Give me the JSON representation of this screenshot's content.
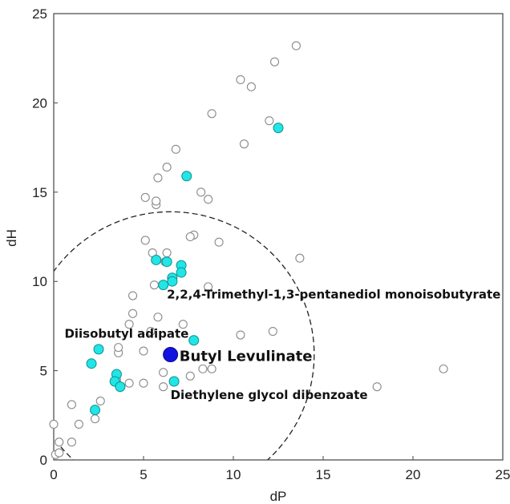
{
  "chart_data": {
    "type": "scatter",
    "title": "",
    "xlabel": "dP",
    "ylabel": "dH",
    "xlim": [
      0,
      25
    ],
    "ylim": [
      0,
      25
    ],
    "xticks": [
      0,
      5,
      10,
      15,
      20,
      25
    ],
    "yticks": [
      0,
      5,
      10,
      15,
      20,
      25
    ],
    "grid": false,
    "colors": {
      "grey_marker_edge": "#8a8a8a",
      "cyan_marker_fill": "#22e5e5",
      "cyan_marker_edge": "#0b8f8f",
      "target_marker_fill": "#1313e0",
      "circle_stroke": "#222222"
    },
    "series": [
      {
        "marker": "hollow-grey-circle",
        "points": [
          [
            0,
            2.0
          ],
          [
            0.3,
            1.0
          ],
          [
            1.0,
            1.0
          ],
          [
            0.1,
            0.3
          ],
          [
            0.3,
            0.4
          ],
          [
            1.0,
            3.1
          ],
          [
            1.4,
            2.0
          ],
          [
            2.3,
            2.3
          ],
          [
            2.6,
            3.3
          ],
          [
            3.6,
            6.0
          ],
          [
            3.6,
            6.3
          ],
          [
            4.2,
            7.6
          ],
          [
            4.4,
            8.2
          ],
          [
            4.4,
            9.2
          ],
          [
            5.1,
            12.3
          ],
          [
            5.1,
            14.7
          ],
          [
            5.7,
            14.3
          ],
          [
            5.7,
            14.5
          ],
          [
            5.8,
            15.8
          ],
          [
            6.3,
            16.4
          ],
          [
            6.8,
            17.4
          ],
          [
            5.5,
            11.6
          ],
          [
            6.2,
            11.1
          ],
          [
            6.3,
            11.6
          ],
          [
            5.6,
            9.8
          ],
          [
            5.8,
            8.0
          ],
          [
            5.0,
            6.1
          ],
          [
            5.4,
            7.2
          ],
          [
            5.0,
            4.3
          ],
          [
            4.2,
            4.3
          ],
          [
            3.5,
            4.5
          ],
          [
            6.1,
            4.9
          ],
          [
            6.1,
            4.1
          ],
          [
            7.6,
            4.7
          ],
          [
            8.3,
            5.1
          ],
          [
            8.8,
            5.1
          ],
          [
            7.2,
            7.6
          ],
          [
            7.8,
            12.6
          ],
          [
            7.6,
            12.5
          ],
          [
            8.2,
            15.0
          ],
          [
            8.6,
            14.6
          ],
          [
            8.6,
            9.7
          ],
          [
            9.2,
            12.2
          ],
          [
            8.8,
            19.4
          ],
          [
            10.4,
            21.3
          ],
          [
            10.6,
            17.7
          ],
          [
            11.0,
            20.9
          ],
          [
            10.4,
            7.0
          ],
          [
            12.2,
            7.2
          ],
          [
            12.0,
            19.0
          ],
          [
            12.3,
            22.3
          ],
          [
            13.5,
            23.2
          ],
          [
            13.7,
            11.3
          ],
          [
            18.0,
            4.1
          ],
          [
            21.7,
            5.1
          ]
        ]
      },
      {
        "marker": "filled-cyan-circle",
        "points": [
          [
            12.5,
            18.6
          ],
          [
            7.4,
            15.9
          ],
          [
            5.7,
            11.2
          ],
          [
            6.3,
            11.1
          ],
          [
            7.1,
            10.9
          ],
          [
            7.1,
            10.5
          ],
          [
            6.6,
            10.2
          ],
          [
            6.6,
            10.0
          ],
          [
            6.1,
            9.8
          ],
          [
            7.8,
            6.7
          ],
          [
            2.5,
            6.2
          ],
          [
            2.1,
            5.4
          ],
          [
            3.5,
            4.8
          ],
          [
            3.4,
            4.4
          ],
          [
            3.7,
            4.1
          ],
          [
            6.7,
            4.4
          ],
          [
            2.3,
            2.8
          ]
        ]
      },
      {
        "name": "Butyl Levulinate",
        "marker": "filled-blue-circle",
        "points": [
          [
            6.5,
            5.9
          ]
        ]
      }
    ],
    "circle": {
      "center": [
        6.5,
        5.9
      ],
      "radius": 8.0,
      "style": "dashed"
    },
    "annotations": [
      {
        "text": "2,2,4-Trimethyl-1,3-pentanediol monoisobutyrate",
        "anchor": [
          6.3,
          9.05
        ]
      },
      {
        "text": "Diisobutyl adipate",
        "anchor": [
          0.6,
          6.85
        ]
      },
      {
        "text": "Butyl Levulinate",
        "anchor": [
          7.0,
          5.55
        ]
      },
      {
        "text": "Diethylene glycol dibenzoate",
        "anchor": [
          6.5,
          3.4
        ]
      }
    ]
  }
}
